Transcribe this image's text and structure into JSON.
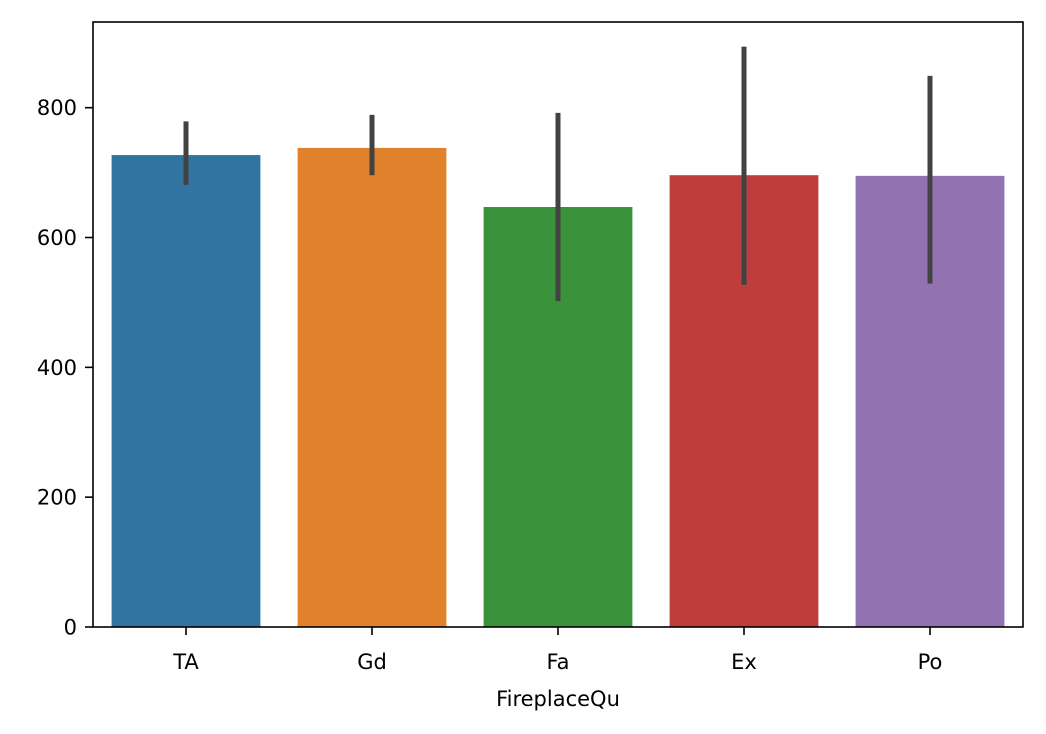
{
  "chart_data": {
    "type": "bar",
    "title": "",
    "xlabel": "FireplaceQu",
    "ylabel": "",
    "categories": [
      "TA",
      "Gd",
      "Fa",
      "Ex",
      "Po"
    ],
    "values": [
      727,
      738,
      647,
      696,
      695
    ],
    "error_bars": [
      {
        "low": 681,
        "high": 779
      },
      {
        "low": 696,
        "high": 789
      },
      {
        "low": 502,
        "high": 792
      },
      {
        "low": 527,
        "high": 894
      },
      {
        "low": 529,
        "high": 849
      }
    ],
    "colors": [
      "#3274a1",
      "#e1812c",
      "#3a923a",
      "#c03d3e",
      "#9372b2"
    ],
    "error_bar_color": "#424242",
    "ylim": [
      0,
      932
    ],
    "yticks": [
      0,
      200,
      400,
      600,
      800
    ],
    "ytick_labels": [
      "0",
      "200",
      "400",
      "600",
      "800"
    ],
    "grid": false,
    "legend": "none"
  }
}
